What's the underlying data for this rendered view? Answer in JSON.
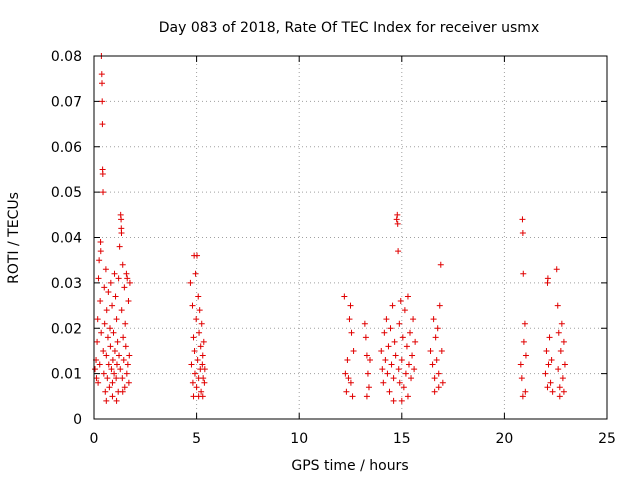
{
  "chart_data": {
    "type": "scatter",
    "title": "Day 083 of 2018, Rate Of TEC Index for receiver usmx",
    "xlabel": "GPS time / hours",
    "ylabel": "ROTI / TECUs",
    "xlim": [
      0,
      25
    ],
    "ylim": [
      0,
      0.08
    ],
    "grid": true,
    "marker": "plus",
    "marker_color": "#e00000",
    "x_ticks": [
      0,
      5,
      10,
      15,
      20,
      25
    ],
    "x_tick_labels": [
      "0",
      "5",
      "10",
      "15",
      "20",
      "25"
    ],
    "y_ticks": [
      0,
      0.01,
      0.02,
      0.03,
      0.04,
      0.05,
      0.06,
      0.07,
      0.08
    ],
    "y_tick_labels": [
      "0",
      "0.01",
      "0.02",
      "0.03",
      "0.04",
      "0.05",
      "0.06",
      "0.07",
      "0.08"
    ],
    "series": [
      {
        "name": "ROTI",
        "points": [
          [
            0.05,
            0.011
          ],
          [
            0.1,
            0.013
          ],
          [
            0.12,
            0.009
          ],
          [
            0.15,
            0.017
          ],
          [
            0.18,
            0.022
          ],
          [
            0.2,
            0.008
          ],
          [
            0.22,
            0.031
          ],
          [
            0.25,
            0.035
          ],
          [
            0.28,
            0.012
          ],
          [
            0.3,
            0.026
          ],
          [
            0.32,
            0.039
          ],
          [
            0.33,
            0.037
          ],
          [
            0.35,
            0.019
          ],
          [
            0.36,
            0.08
          ],
          [
            0.38,
            0.076
          ],
          [
            0.39,
            0.074
          ],
          [
            0.4,
            0.07
          ],
          [
            0.41,
            0.065
          ],
          [
            0.42,
            0.055
          ],
          [
            0.43,
            0.054
          ],
          [
            0.44,
            0.05
          ],
          [
            0.45,
            0.015
          ],
          [
            0.48,
            0.01
          ],
          [
            0.5,
            0.029
          ],
          [
            0.52,
            0.021
          ],
          [
            0.55,
            0.006
          ],
          [
            0.58,
            0.033
          ],
          [
            0.6,
            0.014
          ],
          [
            0.62,
            0.024
          ],
          [
            0.65,
            0.009
          ],
          [
            0.68,
            0.018
          ],
          [
            0.7,
            0.028
          ],
          [
            0.72,
            0.012
          ],
          [
            0.75,
            0.007
          ],
          [
            0.78,
            0.02
          ],
          [
            0.8,
            0.016
          ],
          [
            0.82,
            0.03
          ],
          [
            0.85,
            0.011
          ],
          [
            0.88,
            0.025
          ],
          [
            0.9,
            0.008
          ],
          [
            0.92,
            0.013
          ],
          [
            0.95,
            0.019
          ],
          [
            0.98,
            0.01
          ],
          [
            1.0,
            0.032
          ],
          [
            1.02,
            0.015
          ],
          [
            1.05,
            0.027
          ],
          [
            1.08,
            0.009
          ],
          [
            1.1,
            0.022
          ],
          [
            1.12,
            0.012
          ],
          [
            1.15,
            0.017
          ],
          [
            1.18,
            0.006
          ],
          [
            1.2,
            0.031
          ],
          [
            1.22,
            0.014
          ],
          [
            1.25,
            0.038
          ],
          [
            1.28,
            0.011
          ],
          [
            1.3,
            0.045
          ],
          [
            1.32,
            0.044
          ],
          [
            1.33,
            0.042
          ],
          [
            1.34,
            0.041
          ],
          [
            1.35,
            0.024
          ],
          [
            1.38,
            0.009
          ],
          [
            1.4,
            0.034
          ],
          [
            1.42,
            0.018
          ],
          [
            1.45,
            0.013
          ],
          [
            1.48,
            0.029
          ],
          [
            1.5,
            0.007
          ],
          [
            1.52,
            0.021
          ],
          [
            1.55,
            0.016
          ],
          [
            1.58,
            0.032
          ],
          [
            1.6,
            0.01
          ],
          [
            1.62,
            0.031
          ],
          [
            1.65,
            0.012
          ],
          [
            1.68,
            0.026
          ],
          [
            1.7,
            0.008
          ],
          [
            1.72,
            0.014
          ],
          [
            1.75,
            0.03
          ],
          [
            0.6,
            0.004
          ],
          [
            0.9,
            0.005
          ],
          [
            1.1,
            0.004
          ],
          [
            1.4,
            0.006
          ],
          [
            4.7,
            0.03
          ],
          [
            4.75,
            0.012
          ],
          [
            4.8,
            0.025
          ],
          [
            4.82,
            0.008
          ],
          [
            4.85,
            0.018
          ],
          [
            4.88,
            0.036
          ],
          [
            4.9,
            0.015
          ],
          [
            4.92,
            0.01
          ],
          [
            4.95,
            0.032
          ],
          [
            4.98,
            0.022
          ],
          [
            5.0,
            0.007
          ],
          [
            5.02,
            0.036
          ],
          [
            5.05,
            0.013
          ],
          [
            5.08,
            0.027
          ],
          [
            5.1,
            0.009
          ],
          [
            5.12,
            0.019
          ],
          [
            5.15,
            0.024
          ],
          [
            5.18,
            0.011
          ],
          [
            5.2,
            0.016
          ],
          [
            5.22,
            0.006
          ],
          [
            5.25,
            0.021
          ],
          [
            5.28,
            0.012
          ],
          [
            5.3,
            0.014
          ],
          [
            5.32,
            0.009
          ],
          [
            5.35,
            0.017
          ],
          [
            5.38,
            0.008
          ],
          [
            5.4,
            0.011
          ],
          [
            4.85,
            0.005
          ],
          [
            5.1,
            0.005
          ],
          [
            5.3,
            0.005
          ],
          [
            12.2,
            0.027
          ],
          [
            12.25,
            0.01
          ],
          [
            12.3,
            0.006
          ],
          [
            12.35,
            0.013
          ],
          [
            12.4,
            0.009
          ],
          [
            12.45,
            0.022
          ],
          [
            12.5,
            0.025
          ],
          [
            12.52,
            0.008
          ],
          [
            12.55,
            0.019
          ],
          [
            12.6,
            0.005
          ],
          [
            12.65,
            0.015
          ],
          [
            13.2,
            0.021
          ],
          [
            13.25,
            0.018
          ],
          [
            13.3,
            0.014
          ],
          [
            13.35,
            0.01
          ],
          [
            13.4,
            0.007
          ],
          [
            13.45,
            0.013
          ],
          [
            13.3,
            0.005
          ],
          [
            14.0,
            0.015
          ],
          [
            14.05,
            0.011
          ],
          [
            14.1,
            0.008
          ],
          [
            14.15,
            0.019
          ],
          [
            14.2,
            0.013
          ],
          [
            14.25,
            0.022
          ],
          [
            14.3,
            0.01
          ],
          [
            14.35,
            0.016
          ],
          [
            14.4,
            0.006
          ],
          [
            14.45,
            0.02
          ],
          [
            14.5,
            0.012
          ],
          [
            14.55,
            0.025
          ],
          [
            14.6,
            0.009
          ],
          [
            14.65,
            0.017
          ],
          [
            14.7,
            0.014
          ],
          [
            14.75,
            0.044
          ],
          [
            14.78,
            0.045
          ],
          [
            14.8,
            0.043
          ],
          [
            14.82,
            0.037
          ],
          [
            14.85,
            0.011
          ],
          [
            14.88,
            0.021
          ],
          [
            14.9,
            0.008
          ],
          [
            14.95,
            0.026
          ],
          [
            15.0,
            0.013
          ],
          [
            15.05,
            0.018
          ],
          [
            15.1,
            0.007
          ],
          [
            15.15,
            0.024
          ],
          [
            15.2,
            0.01
          ],
          [
            15.25,
            0.016
          ],
          [
            15.3,
            0.027
          ],
          [
            15.35,
            0.012
          ],
          [
            15.4,
            0.019
          ],
          [
            15.45,
            0.009
          ],
          [
            15.5,
            0.014
          ],
          [
            15.55,
            0.022
          ],
          [
            15.6,
            0.011
          ],
          [
            15.65,
            0.017
          ],
          [
            14.6,
            0.004
          ],
          [
            15.0,
            0.004
          ],
          [
            15.3,
            0.005
          ],
          [
            16.4,
            0.015
          ],
          [
            16.5,
            0.012
          ],
          [
            16.55,
            0.022
          ],
          [
            16.6,
            0.009
          ],
          [
            16.65,
            0.018
          ],
          [
            16.7,
            0.013
          ],
          [
            16.75,
            0.02
          ],
          [
            16.8,
            0.01
          ],
          [
            16.85,
            0.025
          ],
          [
            16.9,
            0.034
          ],
          [
            16.95,
            0.015
          ],
          [
            17.0,
            0.008
          ],
          [
            16.6,
            0.006
          ],
          [
            16.8,
            0.007
          ],
          [
            20.8,
            0.012
          ],
          [
            20.85,
            0.009
          ],
          [
            20.88,
            0.044
          ],
          [
            20.9,
            0.041
          ],
          [
            20.92,
            0.032
          ],
          [
            20.95,
            0.017
          ],
          [
            21.0,
            0.021
          ],
          [
            21.02,
            0.006
          ],
          [
            21.05,
            0.014
          ],
          [
            20.9,
            0.005
          ],
          [
            22.0,
            0.01
          ],
          [
            22.05,
            0.015
          ],
          [
            22.1,
            0.03
          ],
          [
            22.12,
            0.031
          ],
          [
            22.15,
            0.012
          ],
          [
            22.2,
            0.018
          ],
          [
            22.25,
            0.008
          ],
          [
            22.3,
            0.013
          ],
          [
            22.35,
            0.006
          ],
          [
            22.1,
            0.007
          ],
          [
            22.55,
            0.033
          ],
          [
            22.6,
            0.025
          ],
          [
            22.62,
            0.011
          ],
          [
            22.65,
            0.019
          ],
          [
            22.7,
            0.007
          ],
          [
            22.75,
            0.015
          ],
          [
            22.8,
            0.021
          ],
          [
            22.85,
            0.009
          ],
          [
            22.9,
            0.017
          ],
          [
            22.95,
            0.012
          ],
          [
            22.7,
            0.005
          ],
          [
            22.9,
            0.006
          ]
        ]
      }
    ]
  }
}
